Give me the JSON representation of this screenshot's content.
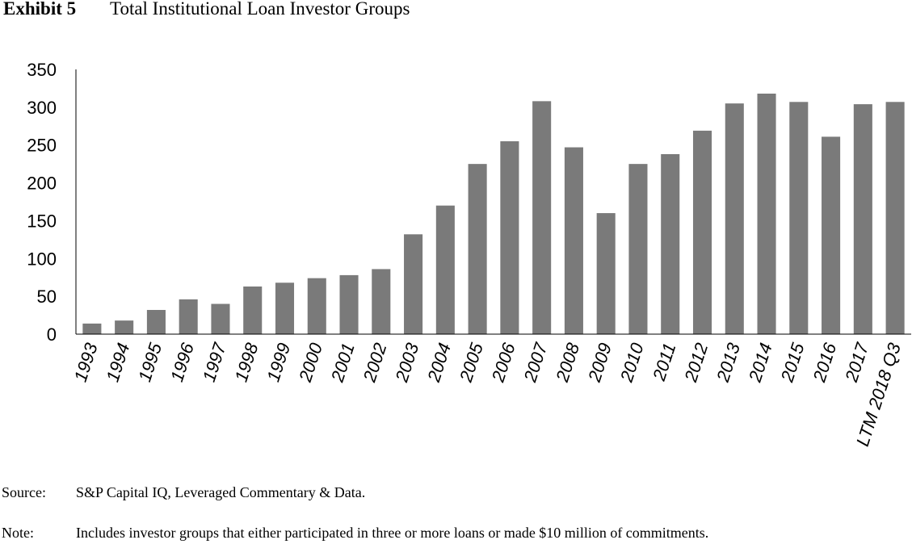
{
  "exhibit": {
    "label": "Exhibit 5",
    "title": "Total Institutional Loan Investor Groups"
  },
  "chart_data": {
    "type": "bar",
    "title": "Total Institutional Loan Investor Groups",
    "xlabel": "",
    "ylabel": "",
    "ylim": [
      0,
      350
    ],
    "yticks": [
      0,
      50,
      100,
      150,
      200,
      250,
      300,
      350
    ],
    "grid": false,
    "legend": "none",
    "bar_color": "#7a7a7a",
    "categories": [
      "1993",
      "1994",
      "1995",
      "1996",
      "1997",
      "1998",
      "1999",
      "2000",
      "2001",
      "2002",
      "2003",
      "2004",
      "2005",
      "2006",
      "2007",
      "2008",
      "2009",
      "2010",
      "2011",
      "2012",
      "2013",
      "2014",
      "2015",
      "2016",
      "2017",
      "LTM 2018 Q3"
    ],
    "values": [
      14,
      18,
      32,
      46,
      40,
      63,
      68,
      74,
      78,
      86,
      132,
      170,
      225,
      255,
      308,
      247,
      160,
      225,
      238,
      269,
      305,
      318,
      307,
      261,
      304,
      307
    ]
  },
  "footnotes": {
    "source_label": "Source:",
    "source_text": "S&P Capital IQ, Leveraged Commentary & Data.",
    "note_label": "Note:",
    "note_text": "Includes investor groups that either participated in three or more loans or made $10 million of commitments."
  }
}
